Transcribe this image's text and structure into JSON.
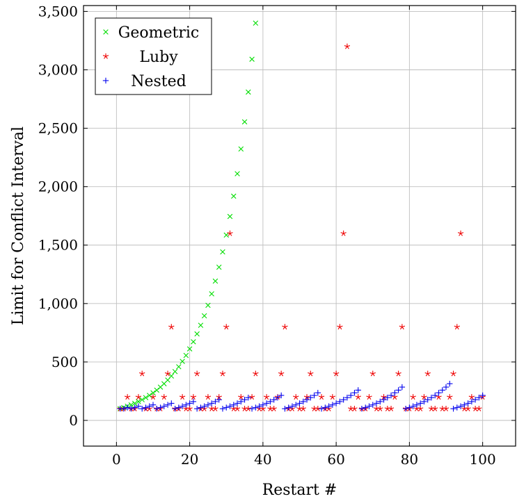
{
  "chart_data": {
    "type": "scatter",
    "xlabel": "Restart #",
    "ylabel": "Limit for Conflict Interval",
    "xlim": [
      -9,
      109
    ],
    "ylim": [
      -220,
      3550
    ],
    "xticks": [
      0,
      20,
      40,
      60,
      80,
      100
    ],
    "yticks": [
      0,
      500,
      1000,
      1500,
      2000,
      2500,
      3000,
      3500
    ],
    "xtick_labels": [
      "0",
      "20",
      "40",
      "60",
      "80",
      "100"
    ],
    "ytick_labels": [
      "0",
      "500",
      "1,000",
      "1,500",
      "2,000",
      "2,500",
      "3,000",
      "3,500"
    ],
    "grid": true,
    "legend_position": "top-left",
    "series": [
      {
        "name": "Geometric",
        "marker": "x",
        "color": "#00dd00",
        "x": [
          1,
          2,
          3,
          4,
          5,
          6,
          7,
          8,
          9,
          10,
          11,
          12,
          13,
          14,
          15,
          16,
          17,
          18,
          19,
          20,
          21,
          22,
          23,
          24,
          25,
          26,
          27,
          28,
          29,
          30,
          31,
          32,
          33,
          34,
          35,
          36,
          37,
          38
        ],
        "y": [
          100,
          110,
          121,
          133,
          146,
          161,
          177,
          195,
          214,
          236,
          259,
          285,
          314,
          345,
          380,
          418,
          459,
          505,
          556,
          612,
          673,
          740,
          814,
          895,
          985,
          1083,
          1192,
          1311,
          1442,
          1586,
          1745,
          1919,
          2111,
          2323,
          2555,
          2810,
          3091,
          3400
        ]
      },
      {
        "name": "Luby",
        "marker": "star",
        "color": "#ee0000",
        "x": [
          1,
          2,
          3,
          4,
          5,
          6,
          7,
          8,
          9,
          10,
          11,
          12,
          13,
          14,
          15,
          16,
          17,
          18,
          19,
          20,
          21,
          22,
          23,
          24,
          25,
          26,
          27,
          28,
          29,
          30,
          31,
          32,
          33,
          34,
          35,
          36,
          37,
          38,
          39,
          40,
          41,
          42,
          43,
          44,
          45,
          46,
          47,
          48,
          49,
          50,
          51,
          52,
          53,
          54,
          55,
          56,
          57,
          58,
          59,
          60,
          61,
          62,
          63,
          64,
          65,
          66,
          67,
          68,
          69,
          70,
          71,
          72,
          73,
          74,
          75,
          76,
          77,
          78,
          79,
          80,
          81,
          82,
          83,
          84,
          85,
          86,
          87,
          88,
          89,
          90,
          91,
          92,
          93,
          94,
          95,
          96,
          97,
          98,
          99,
          100
        ],
        "y": [
          100,
          100,
          200,
          100,
          100,
          200,
          400,
          100,
          100,
          200,
          100,
          100,
          200,
          400,
          800,
          100,
          100,
          200,
          100,
          100,
          200,
          400,
          100,
          100,
          200,
          100,
          100,
          200,
          400,
          800,
          1600,
          100,
          100,
          200,
          100,
          100,
          200,
          400,
          100,
          100,
          200,
          100,
          100,
          200,
          400,
          800,
          100,
          100,
          200,
          100,
          100,
          200,
          400,
          100,
          100,
          200,
          100,
          100,
          200,
          400,
          800,
          1600,
          3200,
          100,
          100,
          200,
          100,
          100,
          200,
          400,
          100,
          100,
          200,
          100,
          100,
          200,
          400,
          800,
          100,
          100,
          200,
          100,
          100,
          200,
          400,
          100,
          100,
          200,
          100,
          100,
          200,
          400,
          800,
          1600,
          100,
          100,
          200,
          100,
          100,
          200
        ]
      },
      {
        "name": "Nested",
        "marker": "plus",
        "color": "#0000ee",
        "x": [
          1,
          2,
          3,
          4,
          5,
          6,
          7,
          8,
          9,
          10,
          11,
          12,
          13,
          14,
          15,
          16,
          17,
          18,
          19,
          20,
          21,
          22,
          23,
          24,
          25,
          26,
          27,
          28,
          29,
          30,
          31,
          32,
          33,
          34,
          35,
          36,
          37,
          38,
          39,
          40,
          41,
          42,
          43,
          44,
          45,
          46,
          47,
          48,
          49,
          50,
          51,
          52,
          53,
          54,
          55,
          56,
          57,
          58,
          59,
          60,
          61,
          62,
          63,
          64,
          65,
          66,
          67,
          68,
          69,
          70,
          71,
          72,
          73,
          74,
          75,
          76,
          77,
          78,
          79,
          80,
          81,
          82,
          83,
          84,
          85,
          86,
          87,
          88,
          89,
          90,
          91,
          92,
          93,
          94,
          95,
          96,
          97,
          98,
          99,
          100
        ],
        "y": [
          100,
          100,
          110,
          100,
          110,
          121,
          100,
          110,
          121,
          133,
          100,
          110,
          121,
          133,
          146,
          100,
          110,
          121,
          133,
          146,
          161,
          100,
          110,
          121,
          133,
          146,
          161,
          177,
          100,
          110,
          121,
          133,
          146,
          161,
          177,
          195,
          100,
          110,
          121,
          133,
          146,
          161,
          177,
          195,
          214,
          100,
          110,
          121,
          133,
          146,
          161,
          177,
          195,
          214,
          236,
          100,
          110,
          121,
          133,
          146,
          161,
          177,
          195,
          214,
          236,
          259,
          100,
          110,
          121,
          133,
          146,
          161,
          177,
          195,
          214,
          236,
          259,
          285,
          100,
          110,
          121,
          133,
          146,
          161,
          177,
          195,
          214,
          236,
          259,
          285,
          314,
          100,
          110,
          121,
          133,
          146,
          161,
          177,
          195,
          214
        ]
      }
    ]
  }
}
